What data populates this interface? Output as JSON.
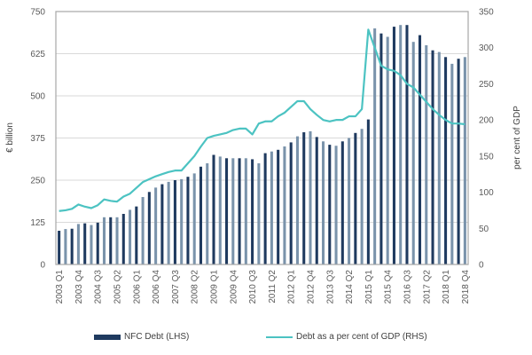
{
  "chart_data": {
    "type": "bar",
    "title": "",
    "xlabel": "",
    "ylabel": "€ billion",
    "y2label": "per cent of GDP",
    "ylim": [
      0,
      750
    ],
    "y2lim": [
      0,
      350
    ],
    "yticks": [
      "0",
      "125",
      "250",
      "375",
      "500",
      "625",
      "750"
    ],
    "y2ticks": [
      "0",
      "50",
      "100",
      "150",
      "200",
      "250",
      "300",
      "350"
    ],
    "grid": true,
    "legend_position": "bottom",
    "categories": [
      "2003 Q1",
      "2003 Q2",
      "2003 Q3",
      "2003 Q4",
      "2004 Q1",
      "2004 Q2",
      "2004 Q3",
      "2004 Q4",
      "2005 Q1",
      "2005 Q2",
      "2005 Q3",
      "2005 Q4",
      "2006 Q1",
      "2006 Q2",
      "2006 Q3",
      "2006 Q4",
      "2007 Q1",
      "2007 Q2",
      "2007 Q3",
      "2007 Q4",
      "2008 Q1",
      "2008 Q2",
      "2008 Q3",
      "2008 Q4",
      "2009 Q1",
      "2009 Q2",
      "2009 Q3",
      "2009 Q4",
      "2010 Q1",
      "2010 Q2",
      "2010 Q3",
      "2010 Q4",
      "2011 Q1",
      "2011 Q2",
      "2011 Q3",
      "2011 Q4",
      "2012 Q1",
      "2012 Q2",
      "2012 Q3",
      "2012 Q4",
      "2013 Q1",
      "2013 Q2",
      "2013 Q3",
      "2013 Q4",
      "2014 Q1",
      "2014 Q2",
      "2014 Q3",
      "2014 Q4",
      "2015 Q1",
      "2015 Q2",
      "2015 Q3",
      "2015 Q4",
      "2016 Q1",
      "2016 Q2",
      "2016 Q3",
      "2016 Q4",
      "2017 Q1",
      "2017 Q2",
      "2017 Q3",
      "2017 Q4",
      "2018 Q1",
      "2018 Q2",
      "2018 Q3",
      "2018 Q4"
    ],
    "xtick_labels": [
      "2003 Q1",
      "2003 Q4",
      "2004 Q3",
      "2005 Q2",
      "2006 Q1",
      "2006 Q4",
      "2007 Q3",
      "2008 Q2",
      "2009 Q1",
      "2009 Q4",
      "2010 Q3",
      "2011 Q2",
      "2012 Q1",
      "2012 Q4",
      "2013 Q3",
      "2014 Q2",
      "2015 Q1",
      "2015 Q4",
      "2016 Q3",
      "2017 Q2",
      "2018 Q1",
      "2018 Q4"
    ],
    "series": [
      {
        "name": "NFC Debt (LHS)",
        "type": "bar",
        "axis": "left",
        "colors": [
          "#1f3a5f",
          "#7a93ab"
        ],
        "values": [
          100,
          105,
          106,
          120,
          122,
          117,
          124,
          140,
          140,
          140,
          150,
          162,
          172,
          200,
          215,
          228,
          238,
          245,
          250,
          253,
          260,
          270,
          290,
          300,
          325,
          320,
          315,
          315,
          315,
          315,
          312,
          300,
          330,
          335,
          340,
          350,
          362,
          380,
          392,
          395,
          378,
          365,
          355,
          352,
          365,
          375,
          390,
          402,
          430,
          700,
          685,
          675,
          705,
          710,
          710,
          660,
          680,
          650,
          635,
          630,
          615,
          595,
          610,
          615
        ]
      },
      {
        "name": "Debt as a per cent of GDP (RHS)",
        "type": "line",
        "axis": "right",
        "color": "#4cc3c2",
        "values": [
          74,
          75,
          77,
          83,
          80,
          78,
          82,
          90,
          88,
          87,
          94,
          98,
          106,
          114,
          118,
          122,
          125,
          128,
          130,
          130,
          140,
          150,
          163,
          175,
          178,
          180,
          182,
          186,
          188,
          188,
          180,
          195,
          198,
          198,
          205,
          210,
          218,
          226,
          226,
          215,
          207,
          200,
          198,
          200,
          200,
          205,
          205,
          215,
          325,
          300,
          275,
          270,
          268,
          262,
          250,
          245,
          235,
          225,
          215,
          207,
          200,
          195,
          195,
          194
        ]
      }
    ]
  },
  "legend": {
    "bar_label": "NFC Debt (LHS)",
    "line_label": "Debt as a per cent of GDP (RHS)"
  }
}
